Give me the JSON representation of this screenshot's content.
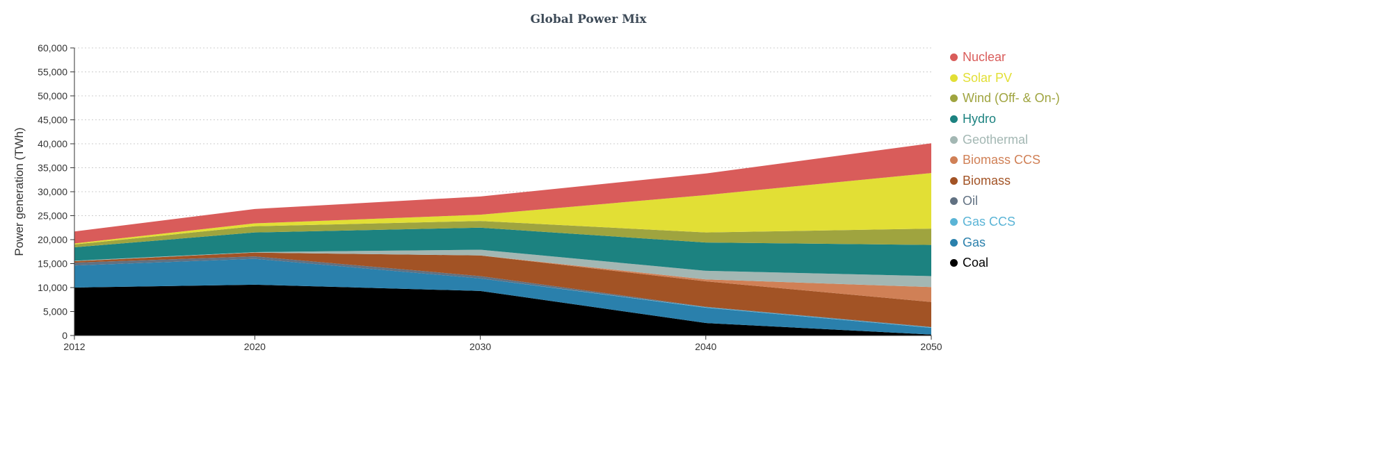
{
  "chart_data": {
    "type": "area",
    "stacked": true,
    "title": "Global Power Mix",
    "xlabel": "",
    "ylabel": "Power generation (TWh)",
    "x": [
      2012,
      2020,
      2030,
      2040,
      2050
    ],
    "xticks": [
      "2012",
      "2020",
      "2030",
      "2040",
      "2050"
    ],
    "ylim": [
      0,
      60000
    ],
    "yticks": [
      "0",
      "5,000",
      "10,000",
      "15,000",
      "20,000",
      "25,000",
      "30,000",
      "35,000",
      "40,000",
      "45,000",
      "50,000",
      "55,000",
      "60,000"
    ],
    "grid": "horizontal dotted",
    "legend_position": "right",
    "series": [
      {
        "name": "Coal",
        "color": "#000000",
        "values": [
          10000,
          10600,
          9300,
          2600,
          200
        ]
      },
      {
        "name": "Gas",
        "color": "#2a80ac",
        "values": [
          4600,
          5400,
          2600,
          3200,
          1400
        ]
      },
      {
        "name": "Gas CCS",
        "color": "#5ab4d6",
        "values": [
          0,
          0,
          0,
          100,
          100
        ]
      },
      {
        "name": "Oil",
        "color": "#617182",
        "values": [
          600,
          500,
          500,
          100,
          100
        ]
      },
      {
        "name": "Biomass",
        "color": "#a25325",
        "values": [
          300,
          800,
          4300,
          5300,
          5200
        ]
      },
      {
        "name": "Biomass CCS",
        "color": "#d08056",
        "values": [
          0,
          0,
          0,
          400,
          3100
        ]
      },
      {
        "name": "Geothermal",
        "color": "#a3b7b3",
        "values": [
          100,
          100,
          1200,
          1800,
          2300
        ]
      },
      {
        "name": "Hydro",
        "color": "#1c8280",
        "values": [
          2800,
          4100,
          4600,
          5900,
          6500
        ]
      },
      {
        "name": "Wind (Off- & On-)",
        "color": "#9fa43f",
        "values": [
          600,
          1300,
          1400,
          2100,
          3400
        ]
      },
      {
        "name": "Solar PV",
        "color": "#e2df35",
        "values": [
          200,
          600,
          1300,
          7800,
          11600
        ]
      },
      {
        "name": "Nuclear",
        "color": "#d95c5a",
        "values": [
          2500,
          3000,
          3800,
          4500,
          6200
        ]
      }
    ]
  }
}
